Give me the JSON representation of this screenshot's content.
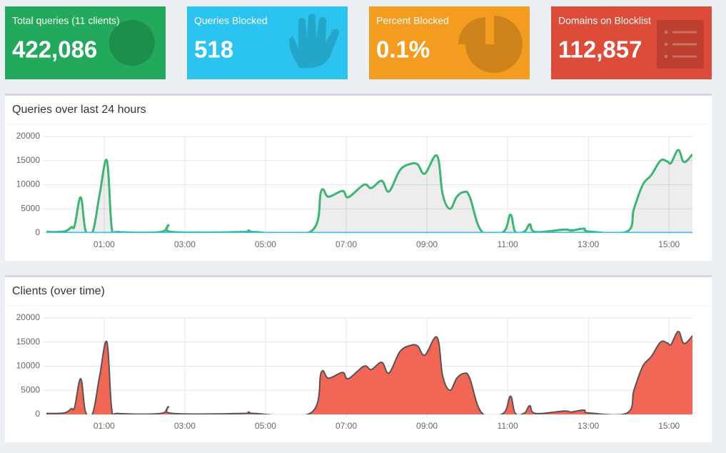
{
  "stats": [
    {
      "label": "Total queries (11 clients)",
      "value": "422,086",
      "color": "#22a95b"
    },
    {
      "label": "Queries Blocked",
      "value": "518",
      "color": "#2bc3ef"
    },
    {
      "label": "Percent Blocked",
      "value": "0.1%",
      "color": "#f39c1f"
    },
    {
      "label": "Domains on Blocklist",
      "value": "112,857",
      "color": "#dd4b39"
    }
  ],
  "chart_data": [
    {
      "type": "line",
      "title": "Queries over last 24 hours",
      "x": [
        -0.43,
        0.01,
        0.19,
        0.27,
        0.42,
        0.54,
        0.72,
        0.89,
        1.07,
        1.19,
        1.34,
        2.4,
        2.59,
        2.7,
        4.43,
        4.58,
        4.72,
        6.12,
        6.38,
        6.56,
        6.91,
        7.05,
        7.44,
        7.62,
        7.88,
        8.06,
        8.33,
        8.59,
        8.77,
        8.95,
        9.25,
        9.39,
        9.57,
        9.74,
        9.92,
        10.06,
        10.36,
        10.89,
        11.07,
        11.19,
        11.42,
        11.55,
        11.69,
        12.4,
        12.58,
        12.89,
        13.02,
        13.96,
        14.13,
        14.35,
        14.56,
        14.79,
        14.96,
        15.05,
        15.23,
        15.37,
        15.58
      ],
      "series": [
        {
          "color": "#3db672",
          "fill": "rgba(0,0,0,0.07)",
          "values": [
            200,
            300,
            1200,
            1500,
            7400,
            500,
            300,
            8000,
            15000,
            1000,
            200,
            200,
            1600,
            200,
            200,
            500,
            200,
            300,
            8700,
            7500,
            8700,
            7400,
            10000,
            9300,
            10800,
            8600,
            13000,
            14300,
            14200,
            12300,
            16000,
            8000,
            5000,
            7500,
            8500,
            7500,
            300,
            200,
            3800,
            200,
            300,
            1800,
            200,
            700,
            500,
            900,
            300,
            300,
            5000,
            10000,
            12000,
            15000,
            14800,
            14500,
            17200,
            14700,
            16300
          ]
        },
        {
          "color": "#36c0e9",
          "values": [
            0,
            0,
            0,
            0,
            0,
            0,
            0,
            0,
            0,
            0,
            0,
            0,
            0,
            0,
            0,
            0,
            0,
            0,
            0,
            0,
            0,
            0,
            0,
            0,
            0,
            0,
            0,
            0,
            0,
            0,
            0,
            0,
            0,
            0,
            0,
            0,
            0,
            0,
            0,
            0,
            0,
            0,
            0,
            0,
            0,
            0,
            0,
            0,
            0,
            0,
            0,
            0,
            0,
            0,
            0,
            0,
            0
          ]
        }
      ],
      "xlim": [
        -0.43,
        15.58
      ],
      "xticks": [
        {
          "value": 1,
          "label": "01:00"
        },
        {
          "value": 3,
          "label": "03:00"
        },
        {
          "value": 5,
          "label": "05:00"
        },
        {
          "value": 7,
          "label": "07:00"
        },
        {
          "value": 9,
          "label": "09:00"
        },
        {
          "value": 11,
          "label": "11:00"
        },
        {
          "value": 13,
          "label": "13:00"
        },
        {
          "value": 15,
          "label": "15:00"
        }
      ],
      "ylim": [
        0,
        20000
      ],
      "yticks": [
        0,
        5000,
        10000,
        15000,
        20000
      ],
      "grid": true
    },
    {
      "type": "area",
      "title": "Clients (over time)",
      "x": [
        -0.43,
        0.01,
        0.19,
        0.27,
        0.42,
        0.54,
        0.72,
        0.89,
        1.07,
        1.19,
        1.34,
        2.4,
        2.59,
        2.7,
        4.43,
        4.58,
        4.72,
        6.12,
        6.38,
        6.56,
        6.91,
        7.05,
        7.44,
        7.62,
        7.88,
        8.06,
        8.33,
        8.59,
        8.77,
        8.95,
        9.25,
        9.39,
        9.57,
        9.74,
        9.92,
        10.06,
        10.36,
        10.89,
        11.07,
        11.19,
        11.42,
        11.55,
        11.69,
        12.4,
        12.58,
        12.89,
        13.02,
        13.96,
        14.13,
        14.35,
        14.56,
        14.79,
        14.96,
        15.05,
        15.23,
        15.37,
        15.58
      ],
      "series": [
        {
          "color": "#555555",
          "fill": "#f16655",
          "values": [
            200,
            300,
            1200,
            1500,
            7400,
            500,
            300,
            8000,
            15000,
            1000,
            200,
            200,
            1600,
            200,
            200,
            500,
            200,
            300,
            8700,
            7500,
            8700,
            7400,
            10000,
            9300,
            10800,
            8600,
            13000,
            14300,
            14200,
            12300,
            16000,
            8000,
            5000,
            7500,
            8500,
            7500,
            300,
            200,
            3800,
            200,
            300,
            1800,
            200,
            700,
            500,
            900,
            300,
            300,
            5000,
            10000,
            12000,
            15000,
            14800,
            14500,
            17200,
            14700,
            16300
          ]
        }
      ],
      "xlim": [
        -0.43,
        15.58
      ],
      "xticks": [
        {
          "value": 1,
          "label": "01:00"
        },
        {
          "value": 3,
          "label": "03:00"
        },
        {
          "value": 5,
          "label": "05:00"
        },
        {
          "value": 7,
          "label": "07:00"
        },
        {
          "value": 9,
          "label": "09:00"
        },
        {
          "value": 11,
          "label": "11:00"
        },
        {
          "value": 13,
          "label": "13:00"
        },
        {
          "value": 15,
          "label": "15:00"
        }
      ],
      "ylim": [
        0,
        20000
      ],
      "yticks": [
        0,
        5000,
        10000,
        15000,
        20000
      ],
      "grid": true
    }
  ]
}
